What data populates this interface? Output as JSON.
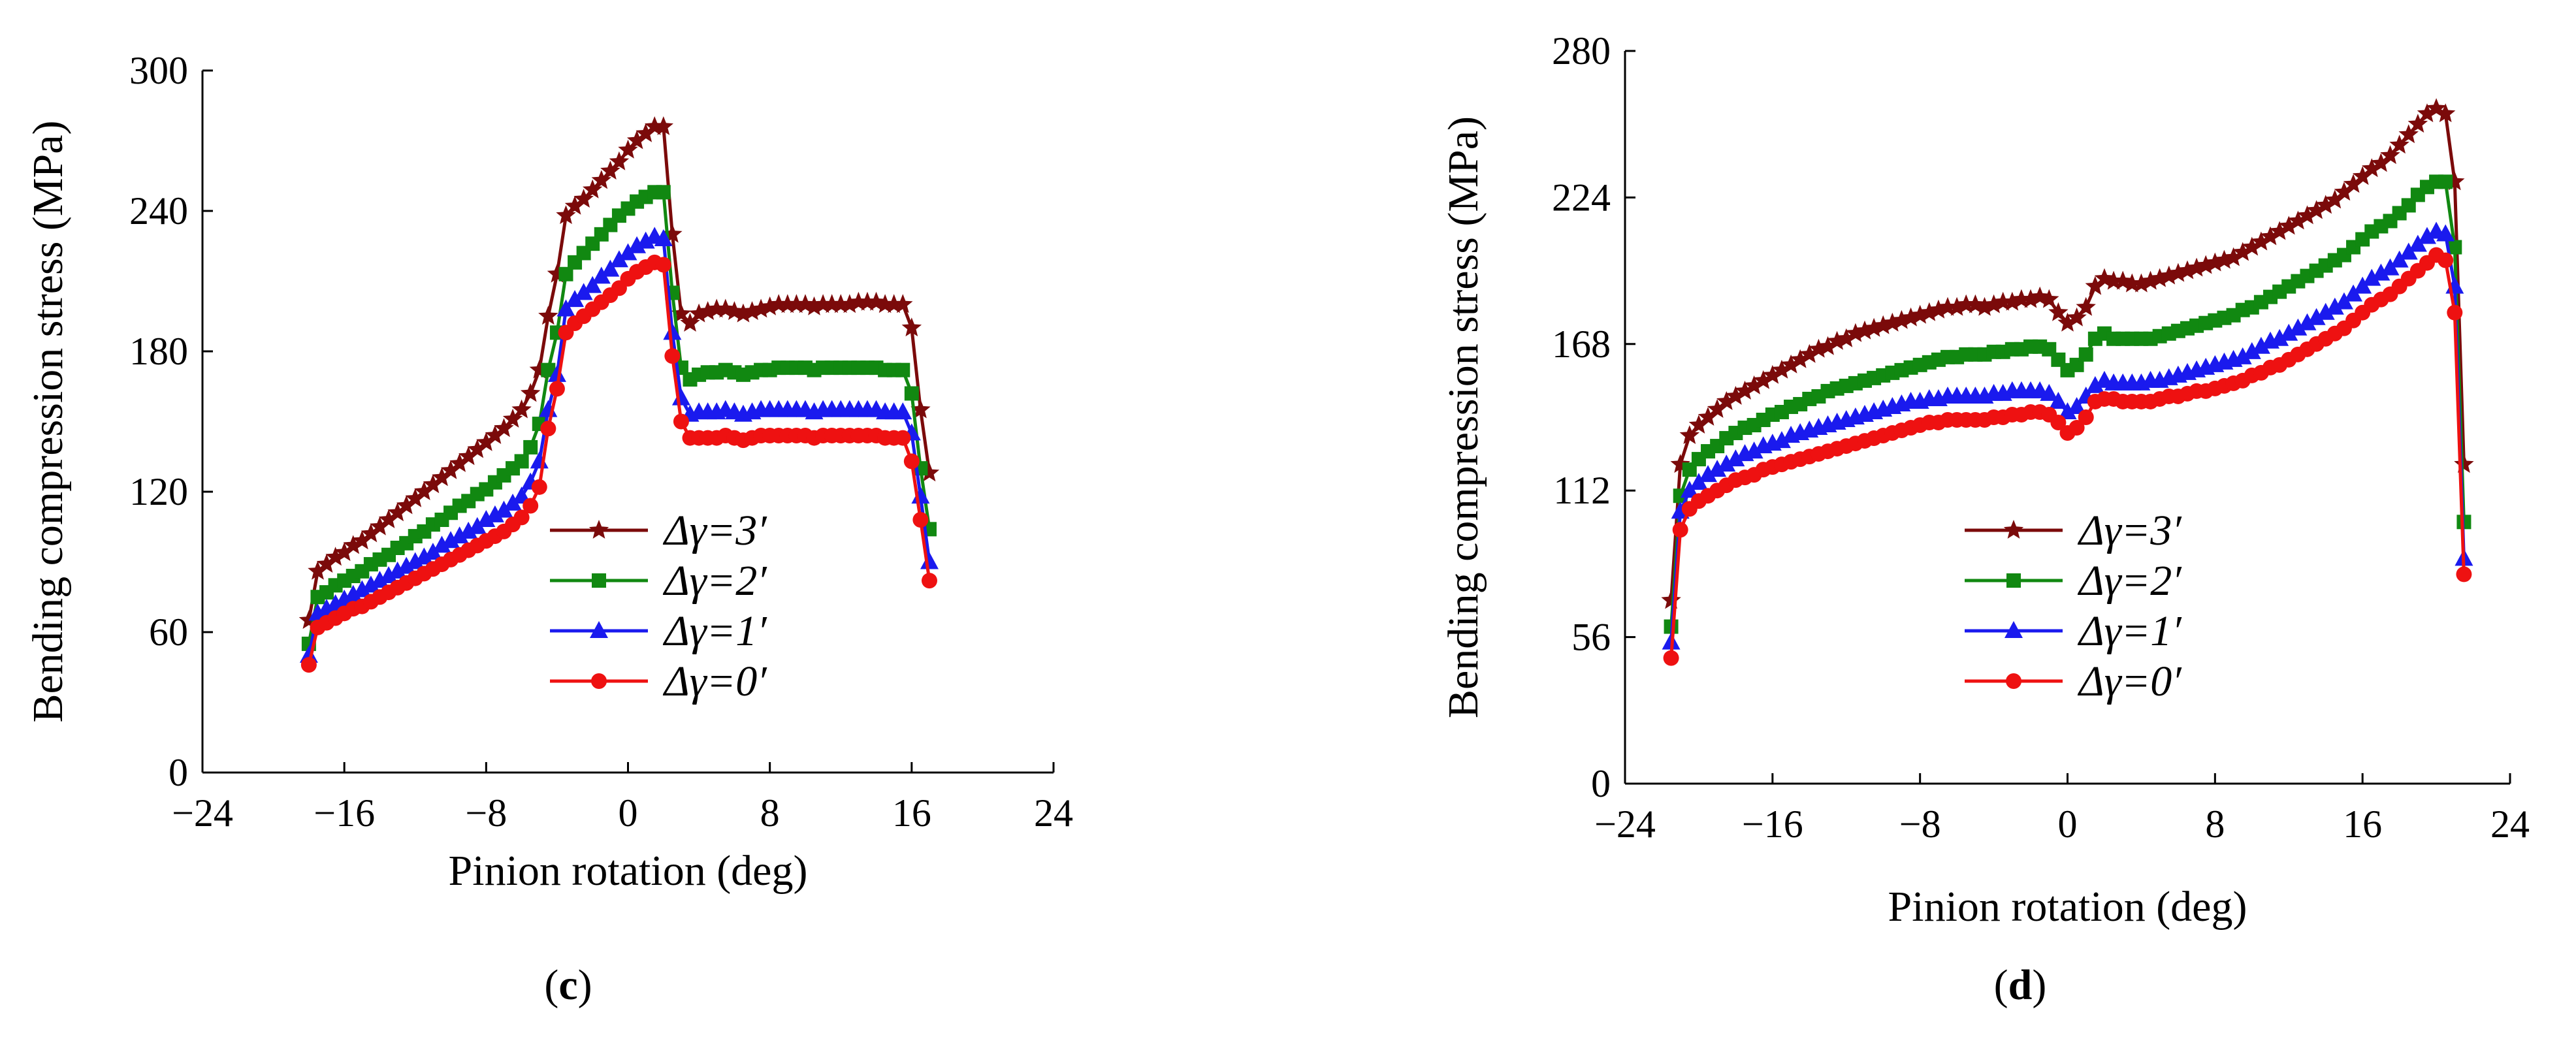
{
  "chart_data": [
    {
      "type": "line",
      "panel_label": "c",
      "xlabel": "Pinion rotation  (deg)",
      "ylabel": "Bending compression stress  (MPa)",
      "xlim": [
        -24,
        24
      ],
      "ylim": [
        0,
        300
      ],
      "xticks": [
        -24,
        -16,
        -8,
        0,
        8,
        16,
        24
      ],
      "xtick_labels": [
        "−24",
        "−16",
        "−8",
        "0",
        "8",
        "16",
        "24"
      ],
      "yticks": [
        0,
        60,
        120,
        180,
        240,
        300
      ],
      "ytick_labels": [
        "0",
        "60",
        "120",
        "180",
        "240",
        "300"
      ],
      "legend_position": "center",
      "x": [
        -18,
        -17.5,
        -17,
        -16.5,
        -16,
        -15.5,
        -15,
        -14.5,
        -14,
        -13.5,
        -13,
        -12.5,
        -12,
        -11.5,
        -11,
        -10.5,
        -10,
        -9.5,
        -9,
        -8.5,
        -8,
        -7.5,
        -7,
        -6.5,
        -6,
        -5.5,
        -5,
        -4.5,
        -4,
        -3.5,
        -3,
        -2.5,
        -2,
        -1.5,
        -1,
        -0.5,
        0,
        0.5,
        1,
        1.5,
        2,
        2.5,
        3,
        3.5,
        4,
        4.5,
        5,
        5.5,
        6,
        6.5,
        7,
        7.5,
        8,
        8.5,
        9,
        9.5,
        10,
        10.5,
        11,
        11.5,
        12,
        12.5,
        13,
        13.5,
        14,
        14.5,
        15,
        15.5,
        16,
        16.5,
        17
      ],
      "series": [
        {
          "name": "Δγ=3′",
          "color": "#7b0a0a",
          "marker": "star",
          "values": [
            65,
            86,
            89,
            92,
            94,
            97,
            99,
            102,
            105,
            108,
            111,
            114,
            117,
            120,
            123,
            126,
            129,
            132,
            135,
            138,
            141,
            144,
            147,
            151,
            155,
            162,
            172,
            195,
            213,
            238,
            242,
            245,
            249,
            253,
            257,
            261,
            266,
            270,
            273,
            276,
            276,
            230,
            196,
            192,
            196,
            197,
            198,
            198,
            197,
            196,
            197,
            198,
            199,
            200,
            200,
            200,
            200,
            199,
            200,
            200,
            200,
            200,
            201,
            201,
            201,
            200,
            200,
            200,
            190,
            155,
            128
          ]
        },
        {
          "name": "Δγ=2′",
          "color": "#118811",
          "marker": "square",
          "values": [
            55,
            75,
            77,
            80,
            82,
            84,
            86,
            89,
            91,
            93,
            96,
            98,
            101,
            103,
            106,
            108,
            111,
            114,
            116,
            119,
            121,
            124,
            127,
            130,
            133,
            139,
            149,
            172,
            188,
            213,
            218,
            222,
            226,
            230,
            234,
            238,
            241,
            244,
            246,
            248,
            248,
            205,
            173,
            168,
            170,
            171,
            171,
            172,
            171,
            170,
            171,
            172,
            172,
            173,
            173,
            173,
            173,
            172,
            173,
            173,
            173,
            173,
            173,
            173,
            173,
            172,
            172,
            172,
            162,
            130,
            104
          ]
        },
        {
          "name": "Δγ=1′",
          "color": "#1a1aee",
          "marker": "triangle",
          "values": [
            50,
            68,
            70,
            72,
            74,
            76,
            78,
            80,
            82,
            84,
            86,
            88,
            90,
            92,
            94,
            97,
            99,
            101,
            103,
            105,
            108,
            110,
            112,
            115,
            118,
            124,
            133,
            155,
            170,
            198,
            202,
            205,
            208,
            212,
            215,
            219,
            222,
            225,
            227,
            229,
            228,
            188,
            160,
            153,
            154,
            154,
            154,
            155,
            154,
            153,
            154,
            155,
            155,
            155,
            155,
            155,
            155,
            154,
            155,
            155,
            155,
            155,
            155,
            155,
            155,
            154,
            154,
            154,
            145,
            118,
            90
          ]
        },
        {
          "name": "Δγ=0′",
          "color": "#ee1111",
          "marker": "circle",
          "values": [
            46,
            62,
            64,
            66,
            68,
            70,
            71,
            73,
            75,
            77,
            79,
            81,
            83,
            85,
            87,
            89,
            91,
            93,
            95,
            97,
            99,
            101,
            103,
            106,
            109,
            114,
            122,
            147,
            164,
            188,
            192,
            195,
            198,
            201,
            204,
            207,
            211,
            214,
            216,
            218,
            217,
            178,
            150,
            143,
            143,
            143,
            143,
            144,
            143,
            142,
            143,
            144,
            144,
            144,
            144,
            144,
            144,
            143,
            144,
            144,
            144,
            144,
            144,
            144,
            144,
            143,
            143,
            143,
            133,
            108,
            82
          ]
        }
      ]
    },
    {
      "type": "line",
      "panel_label": "d",
      "xlabel": "Pinion rotation  (deg)",
      "ylabel": "Bending compression stress  (MPa)",
      "xlim": [
        -24,
        24
      ],
      "ylim": [
        0,
        280
      ],
      "xticks": [
        -24,
        -16,
        -8,
        0,
        8,
        16,
        24
      ],
      "xtick_labels": [
        "−24",
        "−16",
        "−8",
        "0",
        "8",
        "16",
        "24"
      ],
      "yticks": [
        0,
        56,
        112,
        168,
        224,
        280
      ],
      "ytick_labels": [
        "0",
        "56",
        "112",
        "168",
        "224",
        "280"
      ],
      "legend_position": "center",
      "x": [
        -21.5,
        -21,
        -20.5,
        -20,
        -19.5,
        -19,
        -18.5,
        -18,
        -17.5,
        -17,
        -16.5,
        -16,
        -15.5,
        -15,
        -14.5,
        -14,
        -13.5,
        -13,
        -12.5,
        -12,
        -11.5,
        -11,
        -10.5,
        -10,
        -9.5,
        -9,
        -8.5,
        -8,
        -7.5,
        -7,
        -6.5,
        -6,
        -5.5,
        -5,
        -4.5,
        -4,
        -3.5,
        -3,
        -2.5,
        -2,
        -1.5,
        -1,
        -0.5,
        0,
        0.5,
        1,
        1.5,
        2,
        2.5,
        3,
        3.5,
        4,
        4.5,
        5,
        5.5,
        6,
        6.5,
        7,
        7.5,
        8,
        8.5,
        9,
        9.5,
        10,
        10.5,
        11,
        11.5,
        12,
        12.5,
        13,
        13.5,
        14,
        14.5,
        15,
        15.5,
        16,
        16.5,
        17,
        17.5,
        18,
        18.5,
        19,
        19.5,
        20,
        20.5,
        21,
        21.5
      ],
      "series": [
        {
          "name": "Δγ=3′",
          "color": "#7b0a0a",
          "marker": "star",
          "values": [
            70,
            122,
            133,
            137,
            140,
            143,
            146,
            148,
            150,
            152,
            154,
            156,
            158,
            160,
            162,
            164,
            166,
            167,
            169,
            170,
            172,
            173,
            174,
            175,
            176,
            177,
            178,
            179,
            180,
            181,
            182,
            182,
            183,
            183,
            182,
            183,
            184,
            184,
            185,
            185,
            186,
            185,
            180,
            176,
            178,
            182,
            190,
            193,
            192,
            192,
            191,
            191,
            192,
            193,
            194,
            195,
            196,
            197,
            198,
            199,
            200,
            201,
            203,
            205,
            207,
            209,
            211,
            213,
            215,
            217,
            219,
            221,
            223,
            226,
            229,
            232,
            235,
            237,
            240,
            244,
            248,
            252,
            256,
            258,
            256,
            230,
            122
          ]
        },
        {
          "name": "Δγ=2′",
          "color": "#118811",
          "marker": "square",
          "values": [
            60,
            110,
            120,
            124,
            127,
            129,
            132,
            134,
            136,
            137,
            139,
            141,
            142,
            144,
            145,
            147,
            148,
            150,
            151,
            152,
            153,
            154,
            155,
            156,
            157,
            158,
            159,
            160,
            161,
            162,
            163,
            163,
            164,
            164,
            164,
            165,
            165,
            166,
            166,
            167,
            167,
            166,
            162,
            158,
            160,
            164,
            170,
            172,
            170,
            170,
            170,
            170,
            170,
            171,
            172,
            173,
            174,
            175,
            176,
            177,
            178,
            179,
            181,
            182,
            184,
            186,
            188,
            190,
            192,
            194,
            196,
            198,
            200,
            202,
            205,
            208,
            211,
            213,
            215,
            218,
            221,
            225,
            228,
            230,
            230,
            205,
            100
          ]
        },
        {
          "name": "Δγ=1′",
          "color": "#1a1aee",
          "marker": "triangle",
          "values": [
            54,
            104,
            112,
            115,
            118,
            120,
            122,
            124,
            126,
            127,
            129,
            130,
            131,
            133,
            134,
            135,
            136,
            137,
            138,
            139,
            140,
            141,
            142,
            143,
            144,
            145,
            146,
            146,
            147,
            147,
            148,
            148,
            148,
            148,
            148,
            149,
            149,
            150,
            150,
            150,
            150,
            149,
            146,
            142,
            144,
            148,
            152,
            154,
            153,
            153,
            153,
            153,
            154,
            154,
            155,
            156,
            157,
            158,
            159,
            160,
            161,
            162,
            163,
            165,
            167,
            169,
            170,
            172,
            174,
            176,
            178,
            180,
            182,
            184,
            187,
            190,
            193,
            195,
            197,
            200,
            203,
            206,
            209,
            211,
            210,
            190,
            86
          ]
        },
        {
          "name": "Δγ=0′",
          "color": "#ee1111",
          "marker": "circle",
          "values": [
            48,
            97,
            105,
            108,
            110,
            112,
            114,
            116,
            117,
            118,
            120,
            121,
            122,
            123,
            124,
            125,
            126,
            127,
            128,
            129,
            130,
            131,
            132,
            133,
            134,
            135,
            136,
            137,
            138,
            138,
            139,
            139,
            139,
            139,
            139,
            140,
            140,
            141,
            141,
            142,
            142,
            141,
            138,
            134,
            136,
            140,
            146,
            147,
            147,
            146,
            146,
            146,
            146,
            147,
            148,
            148,
            149,
            150,
            150,
            151,
            152,
            153,
            154,
            156,
            157,
            159,
            160,
            162,
            164,
            166,
            168,
            170,
            172,
            174,
            177,
            180,
            183,
            185,
            187,
            190,
            193,
            196,
            199,
            202,
            200,
            180,
            80
          ]
        }
      ]
    }
  ]
}
